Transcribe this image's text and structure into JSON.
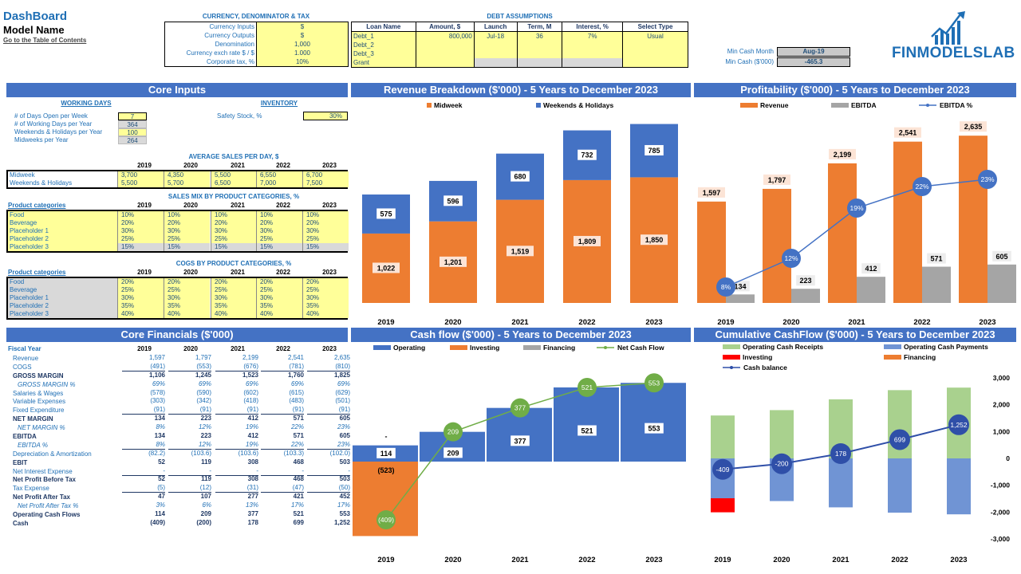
{
  "header": {
    "title": "DashBoard",
    "model_name": "Model Name",
    "toc_link": "Go to the Table of Contents"
  },
  "currency": {
    "title": "CURRENCY, DENOMINATOR & TAX",
    "rows": [
      {
        "label": "Currency Inputs",
        "value": "$"
      },
      {
        "label": "Currency Outputs",
        "value": "$"
      },
      {
        "label": "Denomination",
        "value": "1,000"
      },
      {
        "label": "Currency exch rate $ / $",
        "value": "1.000"
      },
      {
        "label": "Corporate tax, %",
        "value": "10%"
      }
    ]
  },
  "debt": {
    "title": "DEBT ASSUMPTIONS",
    "headers": [
      "Loan Name",
      "Amount, $",
      "Launch",
      "Term, M",
      "Interest, %",
      "Select Type"
    ],
    "rows": [
      [
        "Debt_1",
        "800,000",
        "Jul-18",
        "36",
        "7%",
        "Usual"
      ],
      [
        "Debt_2",
        "",
        "",
        "",
        "",
        ""
      ],
      [
        "Debt_3",
        "",
        "",
        "",
        "",
        ""
      ],
      [
        "Grant",
        "",
        "",
        "",
        "",
        ""
      ]
    ]
  },
  "min_cash": {
    "month_label": "Min Cash Month",
    "month_value": "Aug-19",
    "cash_label": "Min Cash ($'000)",
    "cash_value": "-465.3"
  },
  "logo": {
    "text": "FINMODELSLAB"
  },
  "core_inputs": {
    "title": "Core Inputs",
    "working_days_title": "WORKING DAYS",
    "inventory_title": "INVENTORY",
    "working_days": [
      {
        "label": "# of Days Open per Week",
        "value": "7"
      },
      {
        "label": "# of Working Days per Year",
        "value": "364"
      },
      {
        "label": "Weekends & Holidays per Year",
        "value": "100"
      },
      {
        "label": "Midweeks per Year",
        "value": "264"
      }
    ],
    "safety_stock_label": "Safety Stock, %",
    "safety_stock_value": "30%",
    "avg_sales_title": "AVERAGE SALES PER DAY, $",
    "years": [
      "2019",
      "2020",
      "2021",
      "2022",
      "2023"
    ],
    "avg_sales": [
      {
        "label": "Midweek",
        "values": [
          "3,700",
          "4,350",
          "5,500",
          "6,550",
          "6,700"
        ]
      },
      {
        "label": "Weekends & Holidays",
        "values": [
          "5,500",
          "5,700",
          "6,500",
          "7,000",
          "7,500"
        ]
      }
    ],
    "sales_mix_title": "SALES MIX BY PRODUCT CATEGORIES, %",
    "cogs_title": "COGS BY PRODUCT CATEGORIES, %",
    "product_label": "Product categories",
    "sales_mix": [
      {
        "label": "Food",
        "values": [
          "10%",
          "10%",
          "10%",
          "10%",
          "10%"
        ]
      },
      {
        "label": "Beverage",
        "values": [
          "20%",
          "20%",
          "20%",
          "20%",
          "20%"
        ]
      },
      {
        "label": "Placeholder 1",
        "values": [
          "30%",
          "30%",
          "30%",
          "30%",
          "30%"
        ]
      },
      {
        "label": "Placeholder 2",
        "values": [
          "25%",
          "25%",
          "25%",
          "25%",
          "25%"
        ]
      },
      {
        "label": "Placeholder 3",
        "values": [
          "15%",
          "15%",
          "15%",
          "15%",
          "15%"
        ]
      }
    ],
    "cogs": [
      {
        "label": "Food",
        "values": [
          "20%",
          "20%",
          "20%",
          "20%",
          "20%"
        ]
      },
      {
        "label": "Beverage",
        "values": [
          "25%",
          "25%",
          "25%",
          "25%",
          "25%"
        ]
      },
      {
        "label": "Placeholder 1",
        "values": [
          "30%",
          "30%",
          "30%",
          "30%",
          "30%"
        ]
      },
      {
        "label": "Placeholder 2",
        "values": [
          "35%",
          "35%",
          "35%",
          "35%",
          "35%"
        ]
      },
      {
        "label": "Placeholder 3",
        "values": [
          "40%",
          "40%",
          "40%",
          "40%",
          "40%"
        ]
      }
    ]
  },
  "core_financials": {
    "title": "Core Financials ($'000)",
    "fiscal_label": "Fiscal Year",
    "years": [
      "2019",
      "2020",
      "2021",
      "2022",
      "2023"
    ],
    "rows": [
      {
        "label": "Revenue",
        "values": [
          "1,597",
          "1,797",
          "2,199",
          "2,541",
          "2,635"
        ],
        "style": "n"
      },
      {
        "label": "COGS",
        "values": [
          "(491)",
          "(553)",
          "(676)",
          "(781)",
          "(810)"
        ],
        "style": "n"
      },
      {
        "label": "GROSS MARGIN",
        "values": [
          "1,106",
          "1,245",
          "1,523",
          "1,760",
          "1,825"
        ],
        "style": "b"
      },
      {
        "label": "GROSS MARGIN %",
        "values": [
          "69%",
          "69%",
          "69%",
          "69%",
          "69%"
        ],
        "style": "i"
      },
      {
        "label": "Salaries & Wages",
        "values": [
          "(578)",
          "(590)",
          "(602)",
          "(615)",
          "(629)"
        ],
        "style": "n"
      },
      {
        "label": "Variable Expenses",
        "values": [
          "(303)",
          "(342)",
          "(418)",
          "(483)",
          "(501)"
        ],
        "style": "n"
      },
      {
        "label": "Fixed Expenditure",
        "values": [
          "(91)",
          "(91)",
          "(91)",
          "(91)",
          "(91)"
        ],
        "style": "n"
      },
      {
        "label": "NET MARGIN",
        "values": [
          "134",
          "223",
          "412",
          "571",
          "605"
        ],
        "style": "b"
      },
      {
        "label": "NET MARGIN %",
        "values": [
          "8%",
          "12%",
          "19%",
          "22%",
          "23%"
        ],
        "style": "i"
      },
      {
        "label": "EBITDA",
        "values": [
          "134",
          "223",
          "412",
          "571",
          "605"
        ],
        "style": "b"
      },
      {
        "label": "EBITDA %",
        "values": [
          "8%",
          "12%",
          "19%",
          "22%",
          "23%"
        ],
        "style": "i"
      },
      {
        "label": "Depreciation & Amortization",
        "values": [
          "(82.2)",
          "(103.6)",
          "(103.6)",
          "(103.3)",
          "(102.0)"
        ],
        "style": "n"
      },
      {
        "label": "EBIT",
        "values": [
          "52",
          "119",
          "308",
          "468",
          "503"
        ],
        "style": "b"
      },
      {
        "label": "Net Interest Expense",
        "values": [
          "-",
          "-",
          "-",
          "-",
          "-"
        ],
        "style": "n"
      },
      {
        "label": "Net Profit Before Tax",
        "values": [
          "52",
          "119",
          "308",
          "468",
          "503"
        ],
        "style": "b"
      },
      {
        "label": "Tax Expense",
        "values": [
          "(5)",
          "(12)",
          "(31)",
          "(47)",
          "(50)"
        ],
        "style": "n"
      },
      {
        "label": "Net Profit After Tax",
        "values": [
          "47",
          "107",
          "277",
          "421",
          "452"
        ],
        "style": "b"
      },
      {
        "label": "Net Profit After Tax %",
        "values": [
          "3%",
          "6%",
          "13%",
          "17%",
          "17%"
        ],
        "style": "i"
      },
      {
        "label": "Operating Cash Flows",
        "values": [
          "114",
          "209",
          "377",
          "521",
          "553"
        ],
        "style": "b"
      },
      {
        "label": "Cash",
        "values": [
          "(409)",
          "(200)",
          "178",
          "699",
          "1,252"
        ],
        "style": "b"
      }
    ]
  },
  "chart_data": [
    {
      "type": "bar",
      "title": "Revenue Breakdown ($'000) - 5 Years to December 2023",
      "categories": [
        "2019",
        "2020",
        "2021",
        "2022",
        "2023"
      ],
      "stacked": true,
      "series": [
        {
          "name": "Midweek",
          "values": [
            1022,
            1201,
            1519,
            1809,
            1850
          ],
          "labels": [
            "1,022",
            "1,201",
            "1,519",
            "1,809",
            "1,850"
          ],
          "color": "#ed7d31"
        },
        {
          "name": "Weekends & Holidays",
          "values": [
            575,
            596,
            680,
            732,
            785
          ],
          "labels": [
            "575",
            "596",
            "680",
            "732",
            "785"
          ],
          "color": "#4472c4"
        }
      ]
    },
    {
      "type": "bar",
      "title": "Profitability ($'000) - 5 Years to December 2023",
      "categories": [
        "2019",
        "2020",
        "2021",
        "2022",
        "2023"
      ],
      "series": [
        {
          "name": "Revenue",
          "values": [
            1597,
            1797,
            2199,
            2541,
            2635
          ],
          "labels": [
            "1,597",
            "1,797",
            "2,199",
            "2,541",
            "2,635"
          ],
          "color": "#ed7d31"
        },
        {
          "name": "EBITDA",
          "values": [
            134,
            223,
            412,
            571,
            605
          ],
          "labels": [
            "134",
            "223",
            "412",
            "571",
            "605"
          ],
          "color": "#a5a5a5"
        },
        {
          "name": "EBITDA %",
          "type": "line",
          "values": [
            8,
            12,
            19,
            22,
            23
          ],
          "labels": [
            "8%",
            "12%",
            "19%",
            "22%",
            "23%"
          ],
          "color": "#4472c4"
        }
      ]
    },
    {
      "type": "bar",
      "title": "Cash flow ($'000) - 5 Years to December 2023",
      "categories": [
        "2019",
        "2020",
        "2021",
        "2022",
        "2023"
      ],
      "series": [
        {
          "name": "Operating",
          "values": [
            114,
            209,
            377,
            521,
            553
          ],
          "labels": [
            "114",
            "209",
            "377",
            "521",
            "553"
          ],
          "color": "#4472c4"
        },
        {
          "name": "Investing",
          "values": [
            -523,
            0,
            0,
            0,
            0
          ],
          "labels": [
            "(523)",
            "",
            "",
            "",
            ""
          ],
          "color": "#ed7d31"
        },
        {
          "name": "Financing",
          "values": [
            0,
            0,
            0,
            0,
            0
          ],
          "color": "#a5a5a5"
        },
        {
          "name": "Net Cash Flow",
          "type": "line",
          "values": [
            -409,
            209,
            377,
            521,
            553
          ],
          "labels": [
            "(409)",
            "209",
            "377",
            "521",
            "553"
          ],
          "color": "#70ad47"
        }
      ]
    },
    {
      "type": "bar",
      "title": "Cumulative CashFlow ($'000) - 5 Years to December 2023",
      "categories": [
        "2019",
        "2020",
        "2021",
        "2022",
        "2023"
      ],
      "ylim": [
        -3000,
        3000
      ],
      "yticks": [
        3000,
        2000,
        1000,
        0,
        -1000,
        -2000,
        -3000
      ],
      "ytick_labels": [
        "3,000",
        "2,000",
        "1,000",
        "0",
        "-1,000",
        "-2,000",
        "-3,000"
      ],
      "series": [
        {
          "name": "Operating Cash Receipts",
          "values": [
            1597,
            1797,
            2199,
            2541,
            2635
          ],
          "color": "#a9d18e"
        },
        {
          "name": "Operating Cash Payments",
          "values": [
            -1483,
            -1588,
            -1822,
            -2020,
            -2082
          ],
          "color": "#7094d4"
        },
        {
          "name": "Investing",
          "values": [
            -523,
            0,
            0,
            0,
            0
          ],
          "color": "#ff0000"
        },
        {
          "name": "Financing",
          "values": [
            0,
            0,
            0,
            0,
            0
          ],
          "color": "#ed7d31"
        },
        {
          "name": "Cash balance",
          "type": "line",
          "values": [
            -409,
            -200,
            178,
            699,
            1252
          ],
          "labels": [
            "-409",
            "-200",
            "178",
            "699",
            "1,252"
          ],
          "color": "#2f4fa8"
        }
      ]
    }
  ]
}
